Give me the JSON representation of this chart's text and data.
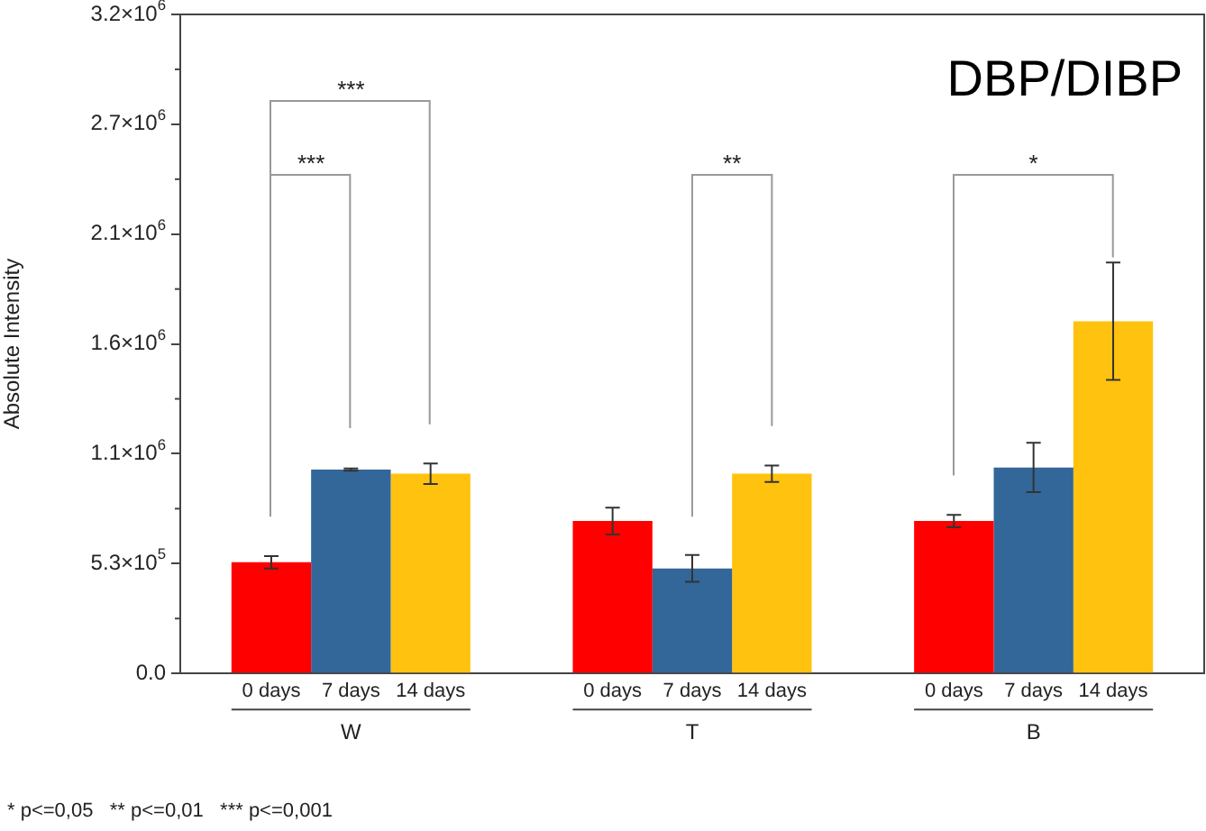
{
  "chart_data": {
    "type": "bar",
    "title": "DBP/DIBP",
    "ylabel": "Absolute Intensity",
    "categories": [
      "W",
      "T",
      "B"
    ],
    "series": [
      {
        "name": "0 days",
        "color": "#ff0000",
        "values": [
          540000,
          740000,
          740000
        ],
        "errors": [
          30000,
          65000,
          30000
        ]
      },
      {
        "name": "7 days",
        "color": "#336699",
        "values": [
          990000,
          510000,
          1000000
        ],
        "errors": [
          5000,
          65000,
          120000
        ]
      },
      {
        "name": "14 days",
        "color": "#ffc20e",
        "values": [
          970000,
          970000,
          1710000
        ],
        "errors": [
          50000,
          40000,
          285000
        ]
      }
    ],
    "ylim": [
      0,
      3200000
    ],
    "yticks": [
      {
        "value": 0,
        "label": "0.0"
      },
      {
        "value": 533333,
        "label": "5.3×10$^{5}$"
      },
      {
        "value": 1066667,
        "label": "1.1×10$^{6}$"
      },
      {
        "value": 1600000,
        "label": "1.6×10$^{6}$"
      },
      {
        "value": 2133333,
        "label": "2.1×10$^{6}$"
      },
      {
        "value": 2666667,
        "label": "2.7×10$^{6}$"
      },
      {
        "value": 3200000,
        "label": "3.2×10$^{6}$"
      }
    ],
    "annotations": [
      "***",
      "***",
      "**",
      "*",
      "* p<=0,05   ** p<=0,01   *** p<=0,001"
    ],
    "grid": false,
    "legend": false
  }
}
